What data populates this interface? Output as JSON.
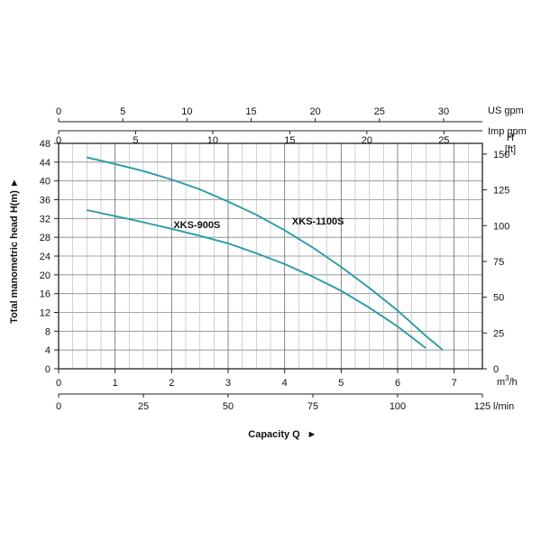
{
  "chart_data": {
    "type": "line",
    "xlabel": "Capacity Q",
    "ylabel_left": "Total manometric head H(m)",
    "ylabel_right": "H",
    "ylabel_right_unit": "[ft]",
    "x_primary_unit": "m³/h",
    "x_primary_unit_base": "m",
    "x_primary_unit_sup": "3",
    "x_primary_unit_tail": "/h",
    "xlim": [
      0,
      7.5
    ],
    "ylim": [
      0,
      48
    ],
    "axes": {
      "us_gpm": {
        "unit": "US gpm",
        "ticks": [
          0,
          5,
          10,
          15,
          20,
          25,
          30
        ],
        "per_m3h": 4.4029
      },
      "imp_gpm": {
        "unit": "Imp gpm",
        "ticks": [
          0,
          5,
          10,
          15,
          20,
          25
        ],
        "per_m3h": 3.6662
      },
      "m3h": {
        "ticks": [
          0,
          1,
          2,
          3,
          4,
          5,
          6,
          7
        ]
      },
      "lmin": {
        "unit": "l/min",
        "ticks": [
          0,
          25,
          50,
          75,
          100,
          125
        ],
        "per_m3h": 16.6667
      },
      "h_m": {
        "ticks": [
          0,
          4,
          8,
          12,
          16,
          20,
          24,
          28,
          32,
          36,
          40,
          44,
          48
        ]
      },
      "h_ft": {
        "ticks": [
          0,
          25,
          50,
          75,
          100,
          125,
          150
        ],
        "per_m": 3.28084
      }
    },
    "arrow_glyph": "►",
    "grid": true,
    "series": [
      {
        "name": "XKS-900S",
        "color": "#2a9ca6",
        "x": [
          0.5,
          1.0,
          1.5,
          2.0,
          2.5,
          3.0,
          3.5,
          4.0,
          4.5,
          5.0,
          5.5,
          6.0,
          6.5
        ],
        "y": [
          33.8,
          32.5,
          31.2,
          29.8,
          28.3,
          26.7,
          24.6,
          22.3,
          19.6,
          16.6,
          13.0,
          9.0,
          4.4
        ]
      },
      {
        "name": "XKS-1100S",
        "color": "#2a9ca6",
        "x": [
          0.5,
          1.0,
          1.5,
          2.0,
          2.5,
          3.0,
          3.5,
          4.0,
          4.5,
          5.0,
          5.5,
          6.0,
          6.5,
          6.8
        ],
        "y": [
          45.0,
          43.6,
          42.1,
          40.3,
          38.2,
          35.6,
          32.8,
          29.5,
          25.8,
          21.7,
          17.2,
          12.4,
          7.0,
          4.0
        ]
      }
    ]
  }
}
